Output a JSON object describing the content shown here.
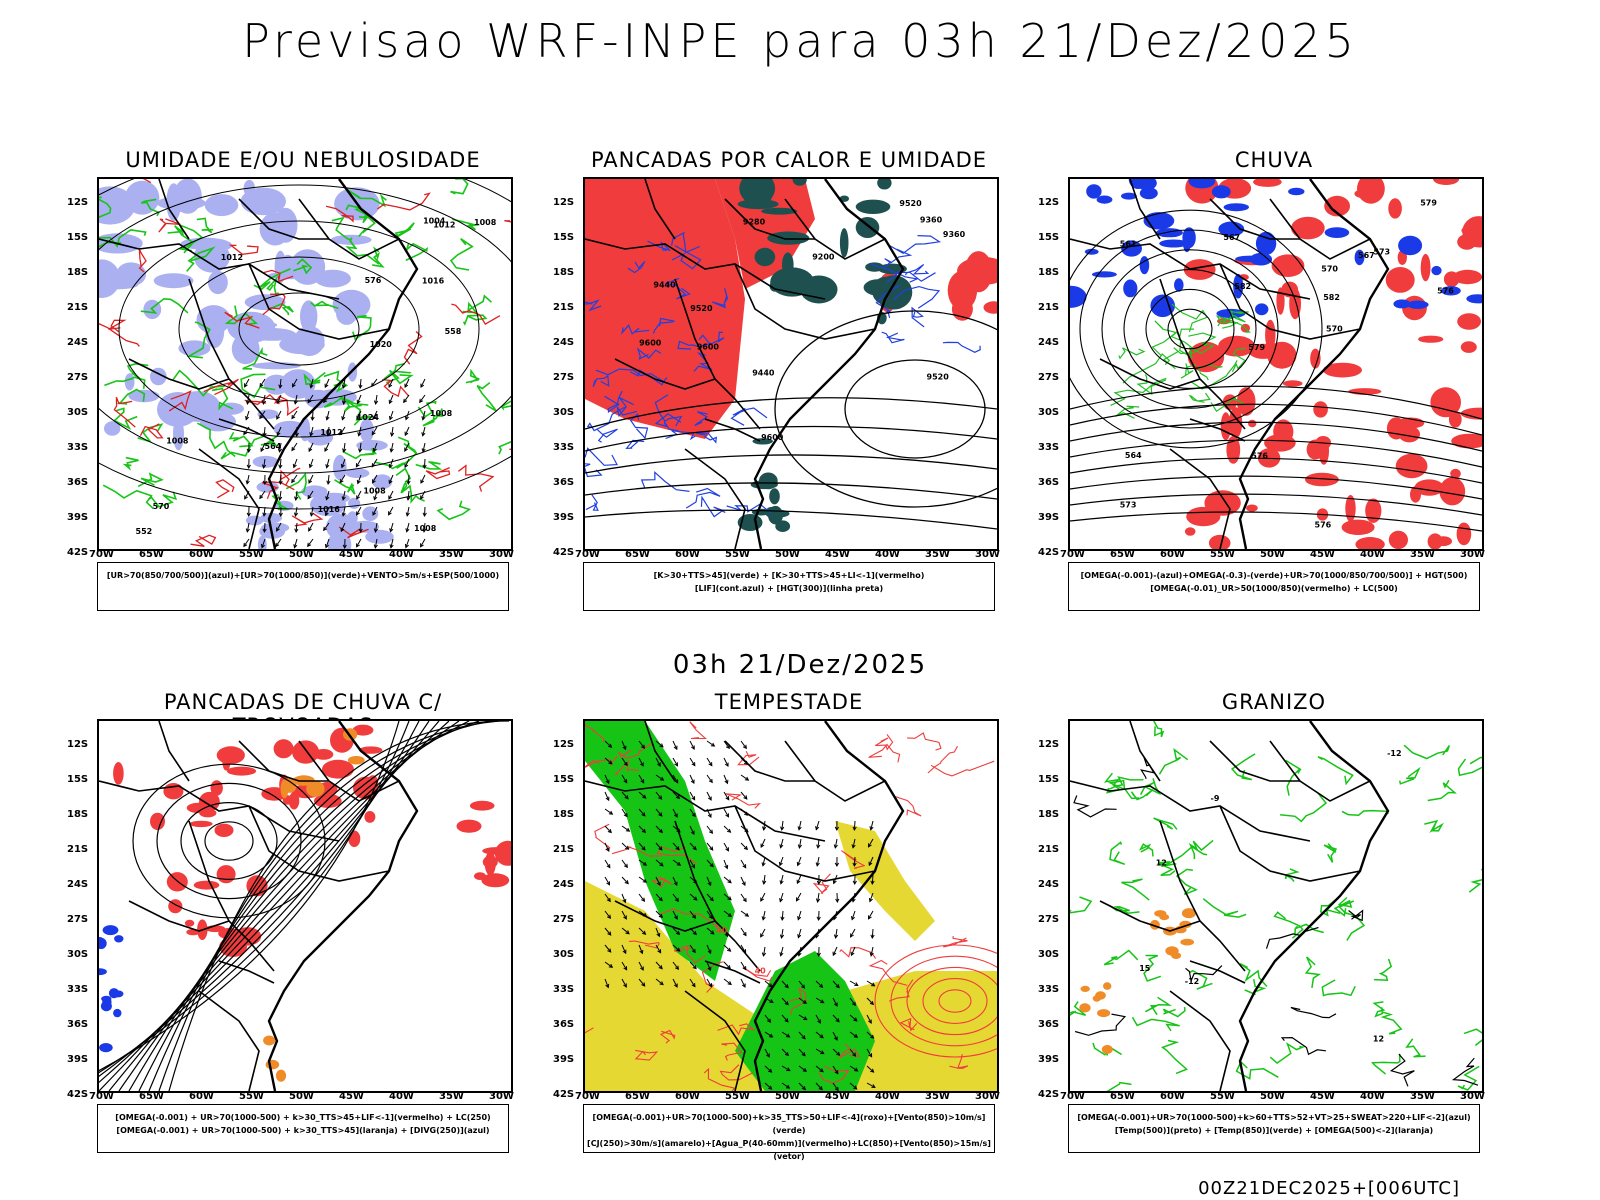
{
  "page": {
    "title": "Previsao WRF-INPE  para 03h 21/Dez/2025",
    "subtitle": "03h 21/Dez/2025",
    "footer": "00Z21DEC2025+[006UTC]"
  },
  "axes": {
    "lat_ticks": [
      "12S",
      "15S",
      "18S",
      "21S",
      "24S",
      "27S",
      "30S",
      "33S",
      "36S",
      "39S",
      "42S"
    ],
    "lon_ticks": [
      "70W",
      "65W",
      "60W",
      "55W",
      "50W",
      "45W",
      "40W",
      "35W",
      "30W"
    ]
  },
  "panels": [
    {
      "id": "umidade",
      "title": "UMIDADE E/OU NEBULOSIDADE",
      "legend": [
        "[UR>70(850/700/500)](azul)+[UR>70(1000/850)](verde)+VENTO>5m/s+ESP(500/1000)"
      ],
      "contour_labels": [
        "1012",
        "1012",
        "1008",
        "1008",
        "1016",
        "1016",
        "1004",
        "1008",
        "1008",
        "1008",
        "1012",
        "576",
        "570",
        "564",
        "558",
        "552",
        "1020",
        "1024"
      ],
      "colors": {
        "fill": "#aab0f0",
        "line": "#17c417",
        "contour": "#e02020"
      }
    },
    {
      "id": "pancadas-calor",
      "title": "PANCADAS POR CALOR E UMIDADE",
      "legend": [
        "[K>30+TTS>45](verde)  +  [K>30+TTS>45+LI<-1](vermelho)",
        "[LIF](cont.azul)  +  [HGT(300)](linha preta)"
      ],
      "contour_labels": [
        "9600",
        "9520",
        "9600",
        "9440",
        "9360",
        "9280",
        "9200",
        "9520",
        "9600",
        "9520",
        "9440",
        "9360"
      ],
      "colors": {
        "fill": "#f03c3c",
        "fill2": "#1f5050",
        "line": "#2040e0"
      }
    },
    {
      "id": "chuva",
      "title": "CHUVA",
      "legend": [
        "[OMEGA(-0.001)-(azul)+OMEGA(-0.3)-(verde)+UR>70(1000/850/700/500)]  +  HGT(500)",
        "[OMEGA(-0.01)_UR>50(1000/850)(vermelho)  +  LC(500)"
      ],
      "contour_labels": [
        "576",
        "582",
        "576",
        "579",
        "573",
        "570",
        "567",
        "564",
        "561",
        "576",
        "573",
        "570",
        "567",
        "579",
        "582"
      ],
      "colors": {
        "fill": "#f03c3c",
        "fill2": "#1a3ae8",
        "line": "#20c020"
      }
    },
    {
      "id": "trovoadas",
      "title": "PANCADAS DE CHUVA C/ TROVOADAS",
      "legend": [
        "[OMEGA(-0.001) + UR>70(1000-500) + k>30_TTS>45+LIF<-1](vermelho) + LC(250)",
        "[OMEGA(-0.001) + UR>70(1000-500) + k>30_TTS>45](laranja) + [DIVG(250)](azul)"
      ],
      "contour_labels": [],
      "colors": {
        "fill": "#f03c3c",
        "fill2": "#f08c28",
        "fill3": "#1a3ae8"
      }
    },
    {
      "id": "tempestade",
      "title": "TEMPESTADE",
      "legend": [
        "[OMEGA(-0.001)+UR>70(1000-500)+k>35_TTS>50+LIF<-4](roxo)+[Vento(850)>10m/s](verde)",
        "[CJ(250)>30m/s](amarelo)+[Agua_P(40-60mm)](vermelho)+LC(850)+[Vento(850)>15m/s](vetor)"
      ],
      "contour_labels": [
        "40",
        "40"
      ],
      "colors": {
        "fill": "#e6d832",
        "fill2": "#16c416",
        "line": "#f03c3c"
      }
    },
    {
      "id": "granizo",
      "title": "GRANIZO",
      "legend": [
        "[OMEGA(-0.001)+UR>70(1000-500)+k>60+TTS>52+VT>25+SWEAT>220+LIF<-2](azul)",
        "[Temp(500)](preto)  +  [Temp(850)](verde)  +  [OMEGA(500)<-2](laranja)"
      ],
      "contour_labels": [
        "-12",
        "-12",
        "-9",
        "12",
        "12",
        "15"
      ],
      "colors": {
        "line": "#16c416",
        "fill2": "#f08c28"
      }
    }
  ]
}
